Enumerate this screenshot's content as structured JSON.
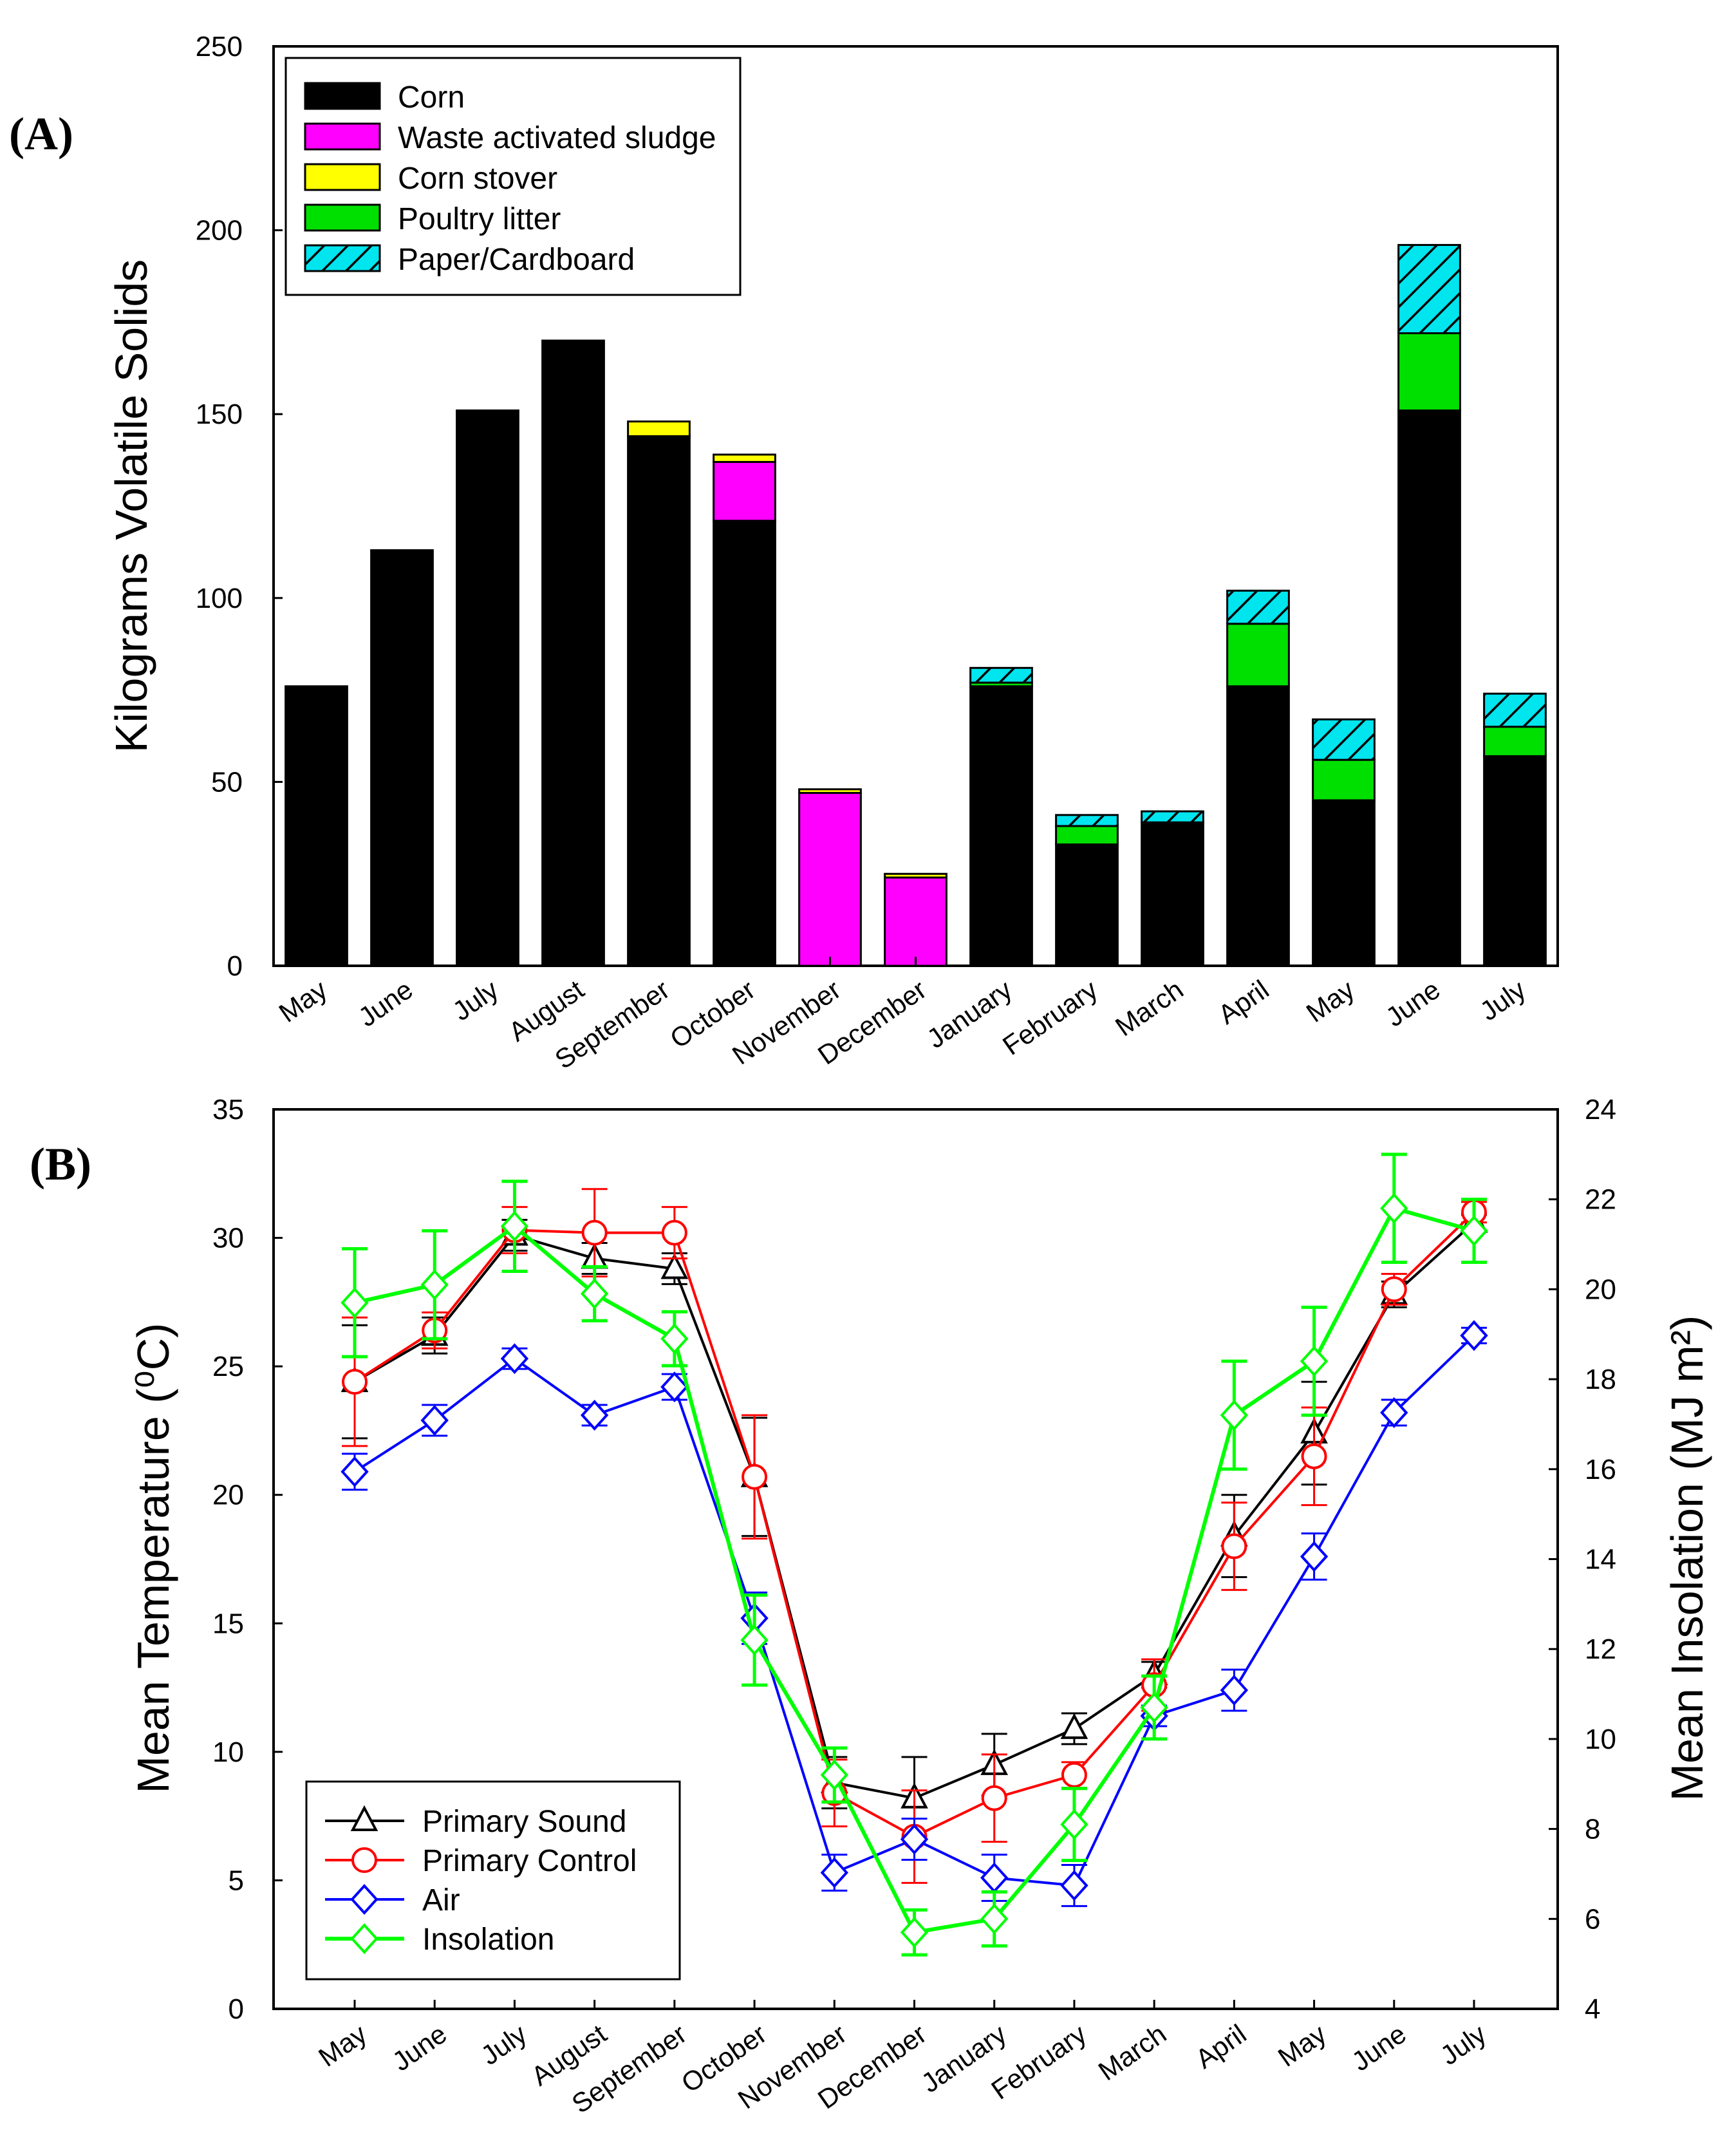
{
  "chart_data": [
    {
      "panel": "(A)",
      "type": "bar",
      "stacked": true,
      "title": "",
      "xlabel": "",
      "ylabel": "Kilograms Volatile Solids",
      "ylim": [
        0,
        250
      ],
      "yticks": [
        0,
        50,
        100,
        150,
        200,
        250
      ],
      "categories": [
        "May",
        "June",
        "July",
        "August",
        "September",
        "October",
        "November",
        "December",
        "January",
        "February",
        "March",
        "April",
        "May",
        "June",
        "July"
      ],
      "legend_position": "top-left",
      "series": [
        {
          "name": "Corn",
          "color": "#000000",
          "pattern": "solid",
          "values": [
            76,
            113,
            151,
            170,
            144,
            121,
            0,
            0,
            76,
            33,
            39,
            76,
            45,
            151,
            57
          ]
        },
        {
          "name": "Waste activated sludge",
          "color": "#ff00ff",
          "pattern": "solid",
          "values": [
            0,
            0,
            0,
            0,
            0,
            16,
            47,
            24,
            0,
            0,
            0,
            0,
            0,
            0,
            0
          ]
        },
        {
          "name": "Corn stover",
          "color": "#ffff00",
          "pattern": "solid",
          "values": [
            0,
            0,
            0,
            0,
            4,
            2,
            1,
            1,
            0,
            0,
            0,
            0,
            0,
            0,
            0
          ]
        },
        {
          "name": "Poultry litter",
          "color": "#00e000",
          "pattern": "solid",
          "values": [
            0,
            0,
            0,
            0,
            0,
            0,
            0,
            0,
            1,
            5,
            0,
            17,
            11,
            21,
            8
          ]
        },
        {
          "name": "Paper/Cardboard",
          "color": "#00e5ee",
          "pattern": "hatched",
          "values": [
            0,
            0,
            0,
            0,
            0,
            0,
            0,
            0,
            4,
            3,
            3,
            9,
            11,
            24,
            9
          ]
        }
      ]
    },
    {
      "panel": "(B)",
      "type": "line",
      "title": "",
      "xlabel": "",
      "ylabel": "Mean Temperature (⁰C)",
      "ylabel_right": "Mean Insolation (MJ m²)",
      "ylim": [
        0,
        35
      ],
      "yticks": [
        0,
        5,
        10,
        15,
        20,
        25,
        30,
        35
      ],
      "ylim_right": [
        4,
        24
      ],
      "yticks_right": [
        4,
        6,
        8,
        10,
        12,
        14,
        16,
        18,
        20,
        22,
        24
      ],
      "categories": [
        "May",
        "June",
        "July",
        "August",
        "September",
        "October",
        "November",
        "December",
        "January",
        "February",
        "March",
        "April",
        "May",
        "June",
        "July"
      ],
      "legend_position": "bottom-left",
      "series": [
        {
          "name": "Primary Sound",
          "color": "#000000",
          "marker": "triangle",
          "axis": "left",
          "values": [
            24.4,
            26.2,
            30.1,
            29.2,
            28.8,
            20.7,
            8.8,
            8.2,
            9.5,
            10.9,
            13.0,
            18.4,
            22.4,
            27.8,
            30.6
          ],
          "errors": [
            2.2,
            0.7,
            0.6,
            0.6,
            0.6,
            2.3,
            1.0,
            1.6,
            1.2,
            0.6,
            0.5,
            1.6,
            2.0,
            0.5,
            0.3
          ]
        },
        {
          "name": "Primary Control",
          "color": "#ff0000",
          "marker": "circle",
          "axis": "left",
          "values": [
            24.4,
            26.4,
            30.3,
            30.2,
            30.2,
            20.7,
            8.4,
            6.7,
            8.2,
            9.1,
            12.6,
            18.0,
            21.5,
            28.0,
            31.0
          ],
          "errors": [
            2.5,
            0.7,
            0.9,
            1.7,
            1.0,
            2.4,
            1.3,
            1.8,
            1.7,
            0.5,
            1.0,
            1.7,
            1.9,
            0.6,
            0.4
          ]
        },
        {
          "name": "Air",
          "color": "#0000ff",
          "marker": "diamond",
          "axis": "left",
          "values": [
            20.9,
            22.9,
            25.3,
            23.1,
            24.2,
            15.2,
            5.3,
            6.6,
            5.1,
            4.8,
            11.4,
            12.4,
            17.6,
            23.2,
            26.2
          ],
          "errors": [
            0.7,
            0.6,
            0.4,
            0.4,
            0.5,
            1.0,
            0.7,
            0.8,
            0.9,
            0.8,
            0.4,
            0.8,
            0.9,
            0.5,
            0.3
          ]
        },
        {
          "name": "Insolation",
          "color": "#00ff00",
          "marker": "diamond",
          "axis": "right",
          "values": [
            19.7,
            20.1,
            21.4,
            19.9,
            18.9,
            12.2,
            9.2,
            5.7,
            6.0,
            8.1,
            10.7,
            17.2,
            18.4,
            21.8,
            21.3
          ],
          "errors": [
            1.2,
            1.2,
            1.0,
            0.6,
            0.6,
            1.0,
            0.6,
            0.5,
            0.6,
            0.8,
            0.7,
            1.2,
            1.2,
            1.2,
            0.7
          ]
        }
      ]
    }
  ]
}
